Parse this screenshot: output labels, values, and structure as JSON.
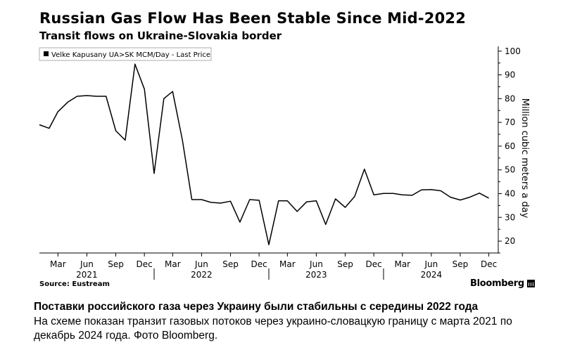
{
  "title": "Russian Gas Flow Has Been Stable Since Mid-2022",
  "subtitle": "Transit flows on Ukraine-Slovakia border",
  "source": "Source: Eustream",
  "brand": "Bloomberg",
  "caption": {
    "headline": "Поставки российского газа  через Украину были стабильны с середины 2022 года",
    "body": "На схеме показан транзит газовых потоков через украино-словацкую границу с марта 2021 по декабрь 2024 года. Фото Bloomberg."
  },
  "chart_data": {
    "type": "line",
    "title": "Russian Gas Flow Has Been Stable Since Mid-2022",
    "subtitle": "Transit flows on Ukraine-Slovakia border",
    "ylabel": "Million cubic meters a day",
    "ylim": [
      15,
      102
    ],
    "yticks": [
      20,
      30,
      40,
      50,
      60,
      70,
      80,
      90,
      100
    ],
    "grid": false,
    "legend_position": "top-left",
    "xlim": [
      "2021-01-01",
      "2024-12-31"
    ],
    "x_month_labels": [
      {
        "date": "2021-03-01",
        "label": "Mar"
      },
      {
        "date": "2021-06-01",
        "label": "Jun"
      },
      {
        "date": "2021-09-01",
        "label": "Sep"
      },
      {
        "date": "2021-12-01",
        "label": "Dec"
      },
      {
        "date": "2022-03-01",
        "label": "Mar"
      },
      {
        "date": "2022-06-01",
        "label": "Jun"
      },
      {
        "date": "2022-09-01",
        "label": "Sep"
      },
      {
        "date": "2022-12-01",
        "label": "Dec"
      },
      {
        "date": "2023-03-01",
        "label": "Mar"
      },
      {
        "date": "2023-06-01",
        "label": "Jun"
      },
      {
        "date": "2023-09-01",
        "label": "Sep"
      },
      {
        "date": "2023-12-01",
        "label": "Dec"
      },
      {
        "date": "2024-03-01",
        "label": "Mar"
      },
      {
        "date": "2024-06-01",
        "label": "Jun"
      },
      {
        "date": "2024-09-01",
        "label": "Sep"
      },
      {
        "date": "2024-12-01",
        "label": "Dec"
      }
    ],
    "x_year_labels": [
      {
        "date": "2021-06-01",
        "label": "2021"
      },
      {
        "date": "2022-06-01",
        "label": "2022"
      },
      {
        "date": "2023-06-01",
        "label": "2023"
      },
      {
        "date": "2024-06-01",
        "label": "2024"
      }
    ],
    "series": [
      {
        "name": "Velke Kapusany UA>SK MCM/Day - Last Price",
        "color": "#000000",
        "points": [
          {
            "x": "2021-01-01",
            "y": 69
          },
          {
            "x": "2021-02-01",
            "y": 67.5
          },
          {
            "x": "2021-03-01",
            "y": 74.5
          },
          {
            "x": "2021-04-01",
            "y": 78.5
          },
          {
            "x": "2021-05-01",
            "y": 81
          },
          {
            "x": "2021-06-01",
            "y": 81.3
          },
          {
            "x": "2021-07-01",
            "y": 81
          },
          {
            "x": "2021-08-01",
            "y": 81
          },
          {
            "x": "2021-09-01",
            "y": 66.5
          },
          {
            "x": "2021-10-01",
            "y": 62.5
          },
          {
            "x": "2021-11-01",
            "y": 94.5
          },
          {
            "x": "2021-12-01",
            "y": 84
          },
          {
            "x": "2022-01-01",
            "y": 48.5
          },
          {
            "x": "2022-02-01",
            "y": 80
          },
          {
            "x": "2022-03-01",
            "y": 83
          },
          {
            "x": "2022-04-01",
            "y": 62.5
          },
          {
            "x": "2022-05-01",
            "y": 37.5
          },
          {
            "x": "2022-06-01",
            "y": 37.5
          },
          {
            "x": "2022-07-01",
            "y": 36.3
          },
          {
            "x": "2022-08-01",
            "y": 36
          },
          {
            "x": "2022-09-01",
            "y": 36.8
          },
          {
            "x": "2022-10-01",
            "y": 28
          },
          {
            "x": "2022-11-01",
            "y": 37.5
          },
          {
            "x": "2022-12-01",
            "y": 37.2
          },
          {
            "x": "2023-01-01",
            "y": 18.5
          },
          {
            "x": "2023-02-01",
            "y": 37
          },
          {
            "x": "2023-03-01",
            "y": 37
          },
          {
            "x": "2023-04-01",
            "y": 32.5
          },
          {
            "x": "2023-05-01",
            "y": 36.5
          },
          {
            "x": "2023-06-01",
            "y": 37
          },
          {
            "x": "2023-07-01",
            "y": 27
          },
          {
            "x": "2023-08-01",
            "y": 37.8
          },
          {
            "x": "2023-09-01",
            "y": 34.2
          },
          {
            "x": "2023-10-01",
            "y": 38.8
          },
          {
            "x": "2023-11-01",
            "y": 50.3
          },
          {
            "x": "2023-12-01",
            "y": 39.5
          },
          {
            "x": "2024-01-01",
            "y": 40.1
          },
          {
            "x": "2024-02-01",
            "y": 40.1
          },
          {
            "x": "2024-03-01",
            "y": 39.5
          },
          {
            "x": "2024-04-01",
            "y": 39.3
          },
          {
            "x": "2024-05-01",
            "y": 41.6
          },
          {
            "x": "2024-06-01",
            "y": 41.7
          },
          {
            "x": "2024-07-01",
            "y": 41.2
          },
          {
            "x": "2024-08-01",
            "y": 38.5
          },
          {
            "x": "2024-09-01",
            "y": 37.3
          },
          {
            "x": "2024-10-01",
            "y": 38.5
          },
          {
            "x": "2024-11-01",
            "y": 40.2
          },
          {
            "x": "2024-12-01",
            "y": 38.1
          }
        ]
      }
    ]
  }
}
